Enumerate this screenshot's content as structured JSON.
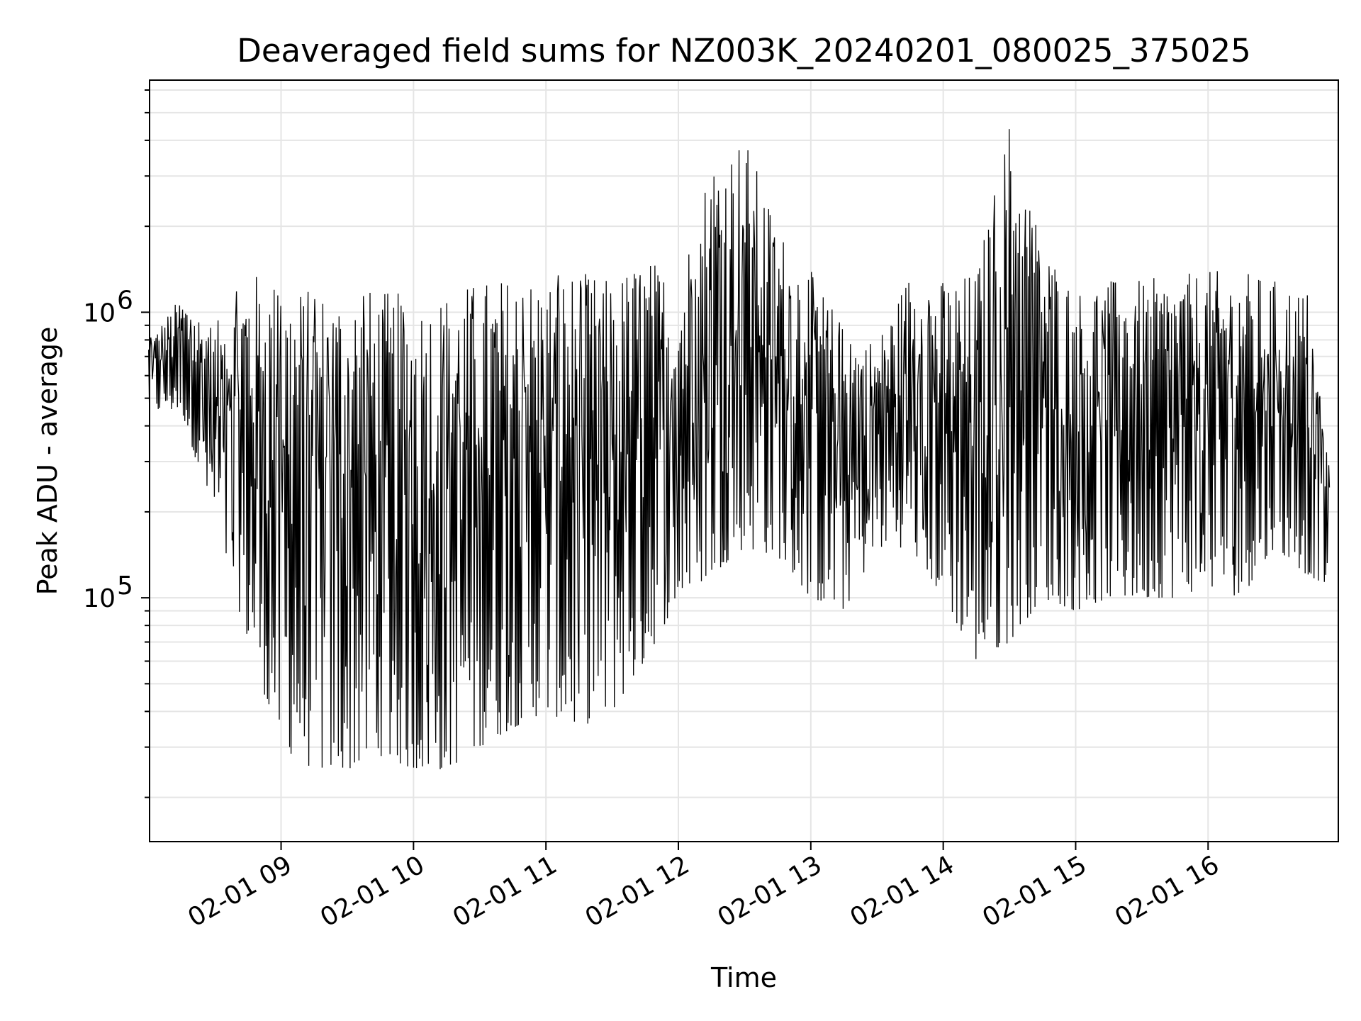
{
  "chart_data": {
    "type": "line",
    "title": "Deaveraged field sums for NZ003K_20240201_080025_375025",
    "xlabel": "Time",
    "ylabel": "Peak ADU - average",
    "yscale": "log",
    "ylim": [
      14000,
      6500000
    ],
    "xlim": [
      "2024-02-01 08:00:25",
      "2024-02-01 16:59:00"
    ],
    "grid": true,
    "line_color": "#000000",
    "grid_color": "#e5e5e5",
    "x_ticks": [
      {
        "value": "2024-02-01 09:00",
        "label": "02-01 09"
      },
      {
        "value": "2024-02-01 10:00",
        "label": "02-01 10"
      },
      {
        "value": "2024-02-01 11:00",
        "label": "02-01 11"
      },
      {
        "value": "2024-02-01 12:00",
        "label": "02-01 12"
      },
      {
        "value": "2024-02-01 13:00",
        "label": "02-01 13"
      },
      {
        "value": "2024-02-01 14:00",
        "label": "02-01 14"
      },
      {
        "value": "2024-02-01 15:00",
        "label": "02-01 15"
      },
      {
        "value": "2024-02-01 16:00",
        "label": "02-01 16"
      }
    ],
    "y_ticks": [
      {
        "value": 100000,
        "base": "10",
        "exp": "5"
      },
      {
        "value": 1000000,
        "base": "10",
        "exp": "6"
      }
    ],
    "series": [
      {
        "x": [
          "2024-02-01 08:00",
          "2024-02-01 08:15",
          "2024-02-01 08:30",
          "2024-02-01 08:45",
          "2024-02-01 09:00",
          "2024-02-01 09:15",
          "2024-02-01 09:30",
          "2024-02-01 09:45",
          "2024-02-01 10:00",
          "2024-02-01 10:15",
          "2024-02-01 10:30",
          "2024-02-01 10:45",
          "2024-02-01 11:00",
          "2024-02-01 11:15",
          "2024-02-01 11:30",
          "2024-02-01 11:45",
          "2024-02-01 12:00",
          "2024-02-01 12:15",
          "2024-02-01 12:30",
          "2024-02-01 12:45",
          "2024-02-01 13:00",
          "2024-02-01 13:15",
          "2024-02-01 13:30",
          "2024-02-01 13:45",
          "2024-02-01 14:00",
          "2024-02-01 14:15",
          "2024-02-01 14:30",
          "2024-02-01 14:45",
          "2024-02-01 15:00",
          "2024-02-01 15:15",
          "2024-02-01 15:30",
          "2024-02-01 15:45",
          "2024-02-01 16:00",
          "2024-02-01 16:15",
          "2024-02-01 16:30",
          "2024-02-01 16:45",
          "2024-02-01 16:55"
        ],
        "upper": [
          800000,
          1150000,
          900000,
          1400000,
          1300000,
          1200000,
          1250000,
          1200000,
          1150000,
          1200000,
          1300000,
          1350000,
          1350000,
          1400000,
          1300000,
          1600000,
          1300000,
          3600000,
          4200000,
          2000000,
          1400000,
          900000,
          800000,
          1400000,
          1300000,
          1400000,
          4800000,
          1800000,
          1200000,
          1300000,
          1300000,
          1350000,
          1400000,
          1400000,
          1300000,
          1200000,
          280000
        ],
        "lower": [
          450000,
          450000,
          180000,
          70000,
          30000,
          25000,
          25000,
          28000,
          25000,
          25000,
          30000,
          35000,
          40000,
          35000,
          40000,
          60000,
          100000,
          120000,
          150000,
          140000,
          100000,
          90000,
          150000,
          150000,
          100000,
          60000,
          70000,
          100000,
          90000,
          100000,
          100000,
          100000,
          110000,
          100000,
          150000,
          120000,
          110000
        ]
      }
    ]
  }
}
